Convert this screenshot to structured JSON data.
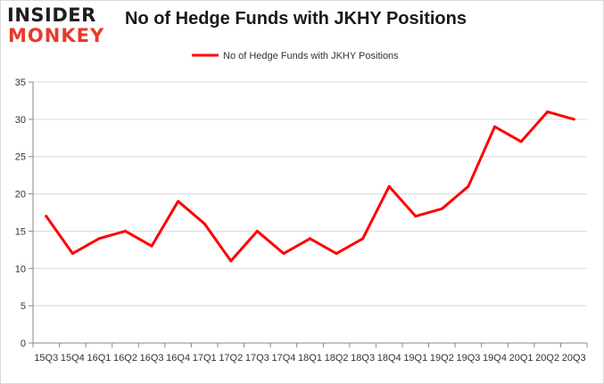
{
  "logo": {
    "line1": "INSIDER",
    "line2": "MONKEY"
  },
  "colors": {
    "series": "#ff0000",
    "grid": "#d9d9d9",
    "axis": "#888888"
  },
  "chart_data": {
    "type": "line",
    "title": "No of Hedge Funds with JKHY Positions",
    "xlabel": "",
    "ylabel": "",
    "legend_position": "top-center",
    "grid": true,
    "ylim": [
      0,
      35
    ],
    "yticks": [
      0,
      5,
      10,
      15,
      20,
      25,
      30,
      35
    ],
    "categories": [
      "15Q3",
      "15Q4",
      "16Q1",
      "16Q2",
      "16Q3",
      "16Q4",
      "17Q1",
      "17Q2",
      "17Q3",
      "17Q4",
      "18Q1",
      "18Q2",
      "18Q3",
      "18Q4",
      "19Q1",
      "19Q2",
      "19Q3",
      "19Q4",
      "20Q1",
      "20Q2",
      "20Q3"
    ],
    "series": [
      {
        "name": "No of Hedge Funds with JKHY Positions",
        "values": [
          17,
          12,
          14,
          15,
          13,
          19,
          16,
          11,
          15,
          12,
          14,
          12,
          14,
          21,
          17,
          18,
          21,
          29,
          27,
          31,
          30
        ]
      }
    ]
  }
}
